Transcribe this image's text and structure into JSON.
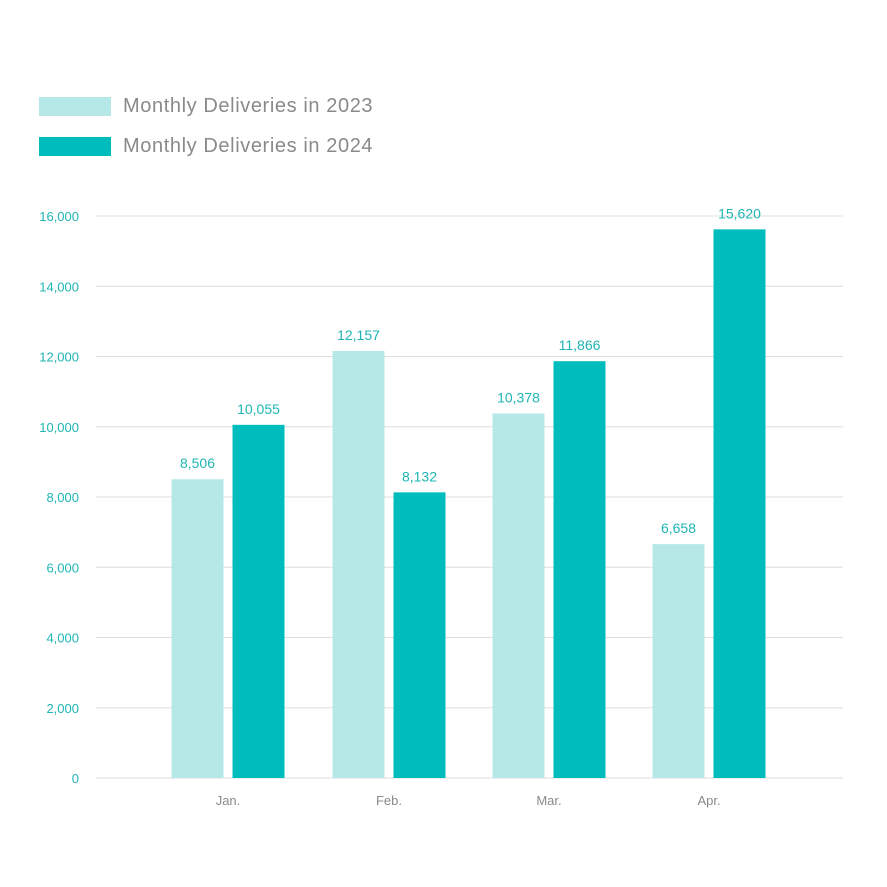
{
  "colors": {
    "series_2023": "#b7e8e8",
    "series_2024": "#00bdbd",
    "grid": "#dddddd",
    "tick_text": "#1fb5b5",
    "category_text": "#8a8a8a"
  },
  "legend": {
    "items": [
      {
        "label": "Monthly Deliveries in 2023",
        "color": "#b7e8e8"
      },
      {
        "label": "Monthly Deliveries in 2024",
        "color": "#00bdbd"
      }
    ],
    "position": "top-left"
  },
  "chart_data": {
    "type": "bar",
    "categories": [
      "Jan.",
      "Feb.",
      "Mar.",
      "Apr."
    ],
    "series": [
      {
        "name": "Monthly Deliveries in 2023",
        "values": [
          8506,
          12157,
          10378,
          6658
        ],
        "labels": [
          "8,506",
          "12,157",
          "10,378",
          "6,658"
        ]
      },
      {
        "name": "Monthly Deliveries in 2024",
        "values": [
          10055,
          8132,
          11866,
          15620
        ],
        "labels": [
          "10,055",
          "8,132",
          "11,866",
          "15,620"
        ]
      }
    ],
    "ylim": [
      0,
      16000
    ],
    "yticks": [
      0,
      2000,
      4000,
      6000,
      8000,
      10000,
      12000,
      14000,
      16000
    ],
    "ytick_labels": [
      "0",
      "2,000",
      "4,000",
      "6,000",
      "8,000",
      "10,000",
      "12,000",
      "14,000",
      "16,000"
    ],
    "grid": true,
    "title": "",
    "xlabel": "",
    "ylabel": ""
  }
}
